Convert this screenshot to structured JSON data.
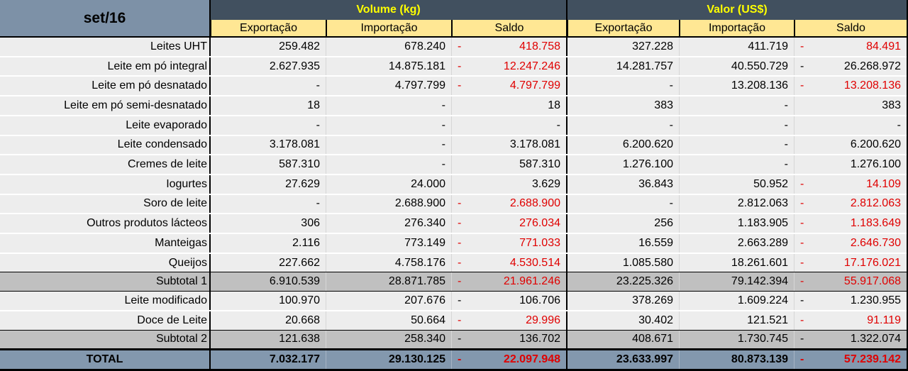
{
  "period": "set/16",
  "sections": [
    {
      "label": "Volume (kg)"
    },
    {
      "label": "Valor (US$)"
    }
  ],
  "columns": [
    "Exportação",
    "Importação",
    "Saldo"
  ],
  "colors": {
    "negative_red": "#e00000",
    "section_header_bg": "#41505f",
    "section_header_text": "#ffff00",
    "subheader_bg": "#ffe794",
    "period_cell_bg": "#7d91a7",
    "total_row_bg": "#8398ae",
    "subtotal_row_bg": "#c0c0c0",
    "data_row_bg": "#ededed"
  },
  "rows": [
    {
      "label": "Leites UHT",
      "type": "data",
      "cells": [
        {
          "text": "259.482"
        },
        {
          "text": "678.240"
        },
        {
          "text": "418.758",
          "sign": "-",
          "red": true
        },
        {
          "text": "327.228"
        },
        {
          "text": "411.719"
        },
        {
          "text": "84.491",
          "sign": "-",
          "red": true
        }
      ]
    },
    {
      "label": "Leite em pó integral",
      "type": "data",
      "cells": [
        {
          "text": "2.627.935"
        },
        {
          "text": "14.875.181"
        },
        {
          "text": "12.247.246",
          "sign": "-",
          "red": true
        },
        {
          "text": "14.281.757"
        },
        {
          "text": "40.550.729"
        },
        {
          "text": "26.268.972",
          "sign": "-",
          "red": false
        }
      ]
    },
    {
      "label": "Leite em pó desnatado",
      "type": "data",
      "cells": [
        {
          "text": "-"
        },
        {
          "text": "4.797.799"
        },
        {
          "text": "4.797.799",
          "sign": "-",
          "red": true
        },
        {
          "text": "-"
        },
        {
          "text": "13.208.136"
        },
        {
          "text": "13.208.136",
          "sign": "-",
          "red": true
        }
      ]
    },
    {
      "label": "Leite em pó semi-desnatado",
      "type": "data",
      "cells": [
        {
          "text": "18"
        },
        {
          "text": "-"
        },
        {
          "text": "18"
        },
        {
          "text": "383"
        },
        {
          "text": "-"
        },
        {
          "text": "383"
        }
      ]
    },
    {
      "label": "Leite evaporado",
      "type": "data",
      "cells": [
        {
          "text": "-"
        },
        {
          "text": "-"
        },
        {
          "text": "-"
        },
        {
          "text": "-"
        },
        {
          "text": "-"
        },
        {
          "text": "-"
        }
      ]
    },
    {
      "label": "Leite condensado",
      "type": "data",
      "cells": [
        {
          "text": "3.178.081"
        },
        {
          "text": "-"
        },
        {
          "text": "3.178.081"
        },
        {
          "text": "6.200.620"
        },
        {
          "text": "-"
        },
        {
          "text": "6.200.620"
        }
      ]
    },
    {
      "label": "Cremes de leite",
      "type": "data",
      "cells": [
        {
          "text": "587.310"
        },
        {
          "text": "-"
        },
        {
          "text": "587.310"
        },
        {
          "text": "1.276.100"
        },
        {
          "text": "-"
        },
        {
          "text": "1.276.100"
        }
      ]
    },
    {
      "label": "Iogurtes",
      "type": "data",
      "cells": [
        {
          "text": "27.629"
        },
        {
          "text": "24.000"
        },
        {
          "text": "3.629"
        },
        {
          "text": "36.843"
        },
        {
          "text": "50.952"
        },
        {
          "text": "14.109",
          "sign": "-",
          "red": true
        }
      ]
    },
    {
      "label": "Soro de leite",
      "type": "data",
      "cells": [
        {
          "text": "-"
        },
        {
          "text": "2.688.900"
        },
        {
          "text": "2.688.900",
          "sign": "-",
          "red": true
        },
        {
          "text": "-"
        },
        {
          "text": "2.812.063"
        },
        {
          "text": "2.812.063",
          "sign": "-",
          "red": true
        }
      ]
    },
    {
      "label": "Outros produtos lácteos",
      "type": "data",
      "cells": [
        {
          "text": "306"
        },
        {
          "text": "276.340"
        },
        {
          "text": "276.034",
          "sign": "-",
          "red": true
        },
        {
          "text": "256"
        },
        {
          "text": "1.183.905"
        },
        {
          "text": "1.183.649",
          "sign": "-",
          "red": true
        }
      ]
    },
    {
      "label": "Manteigas",
      "type": "data",
      "cells": [
        {
          "text": "2.116"
        },
        {
          "text": "773.149"
        },
        {
          "text": "771.033",
          "sign": "-",
          "red": true
        },
        {
          "text": "16.559"
        },
        {
          "text": "2.663.289"
        },
        {
          "text": "2.646.730",
          "sign": "-",
          "red": true
        }
      ]
    },
    {
      "label": "Queijos",
      "type": "data",
      "cells": [
        {
          "text": "227.662"
        },
        {
          "text": "4.758.176"
        },
        {
          "text": "4.530.514",
          "sign": "-",
          "red": true
        },
        {
          "text": "1.085.580"
        },
        {
          "text": "18.261.601"
        },
        {
          "text": "17.176.021",
          "sign": "-",
          "red": true
        }
      ]
    },
    {
      "label": "Subtotal 1",
      "type": "subtotal",
      "cells": [
        {
          "text": "6.910.539"
        },
        {
          "text": "28.871.785"
        },
        {
          "text": "21.961.246",
          "sign": "-",
          "red": true
        },
        {
          "text": "23.225.326"
        },
        {
          "text": "79.142.394"
        },
        {
          "text": "55.917.068",
          "sign": "-",
          "red": true
        }
      ]
    },
    {
      "label": "Leite modificado",
      "type": "data",
      "cells": [
        {
          "text": "100.970"
        },
        {
          "text": "207.676"
        },
        {
          "text": "106.706",
          "sign": "-",
          "red": false
        },
        {
          "text": "378.269"
        },
        {
          "text": "1.609.224"
        },
        {
          "text": "1.230.955",
          "sign": "-",
          "red": false
        }
      ]
    },
    {
      "label": "Doce de Leite",
      "type": "data",
      "cells": [
        {
          "text": "20.668"
        },
        {
          "text": "50.664"
        },
        {
          "text": "29.996",
          "sign": "-",
          "red": true
        },
        {
          "text": "30.402"
        },
        {
          "text": "121.521"
        },
        {
          "text": "91.119",
          "sign": "-",
          "red": true
        }
      ]
    },
    {
      "label": "Subtotal 2",
      "type": "subtotal",
      "cells": [
        {
          "text": "121.638"
        },
        {
          "text": "258.340"
        },
        {
          "text": "136.702",
          "sign": "-",
          "red": false
        },
        {
          "text": "408.671"
        },
        {
          "text": "1.730.745"
        },
        {
          "text": "1.322.074",
          "sign": "-",
          "red": false
        }
      ]
    },
    {
      "label": "TOTAL",
      "type": "total",
      "cells": [
        {
          "text": "7.032.177"
        },
        {
          "text": "29.130.125"
        },
        {
          "text": "22.097.948",
          "sign": "-",
          "red": true
        },
        {
          "text": "23.633.997"
        },
        {
          "text": "80.873.139"
        },
        {
          "text": "57.239.142",
          "sign": "-",
          "red": true
        }
      ]
    }
  ]
}
